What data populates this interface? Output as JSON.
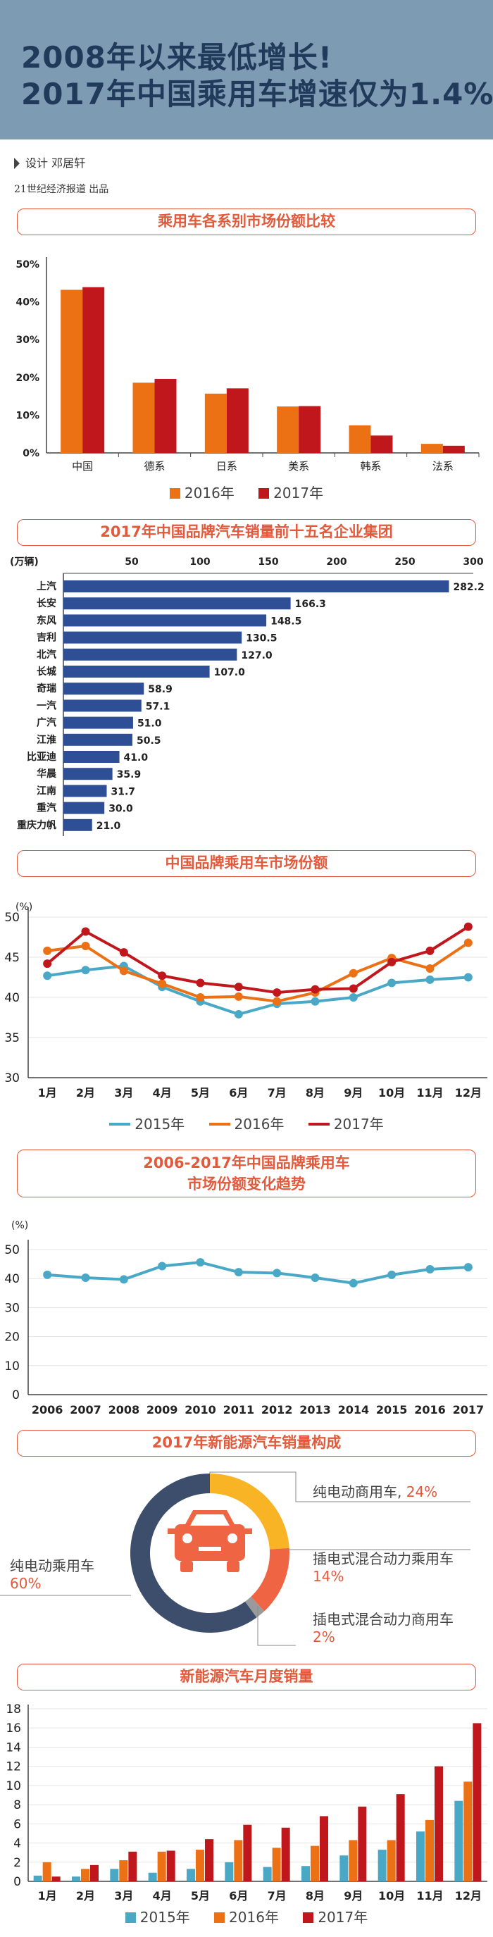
{
  "header": {
    "title_line1": "2008年以来最低增长!",
    "title_line2": "2017年中国乘用车增速仅为1.4%"
  },
  "credits": {
    "designer": "设计  邓居轩",
    "publisher": "21世纪经济报道  出品"
  },
  "sections": {
    "s1": "乘用车各系别市场份额比较",
    "s2": "2017年中国品牌汽车销量前十五名企业集团",
    "s3": "中国品牌乘用车市场份额",
    "s4_line1": "2006-2017年中国品牌乘用车",
    "s4_line2": "市场份额变化趋势",
    "s5": "2017年新能源汽车销量构成",
    "s6": "新能源汽车月度销量"
  },
  "colors": {
    "orange": "#ec7014",
    "red": "#c0171c",
    "blue": "#2e4e96",
    "teal": "#4aa8c7",
    "navy": "#3c4e6b",
    "yellow": "#f8b425",
    "coral": "#ef6543",
    "gray": "#9a9a9a",
    "accent": "#e25a3b"
  },
  "legend_labels": {
    "y2015": "2015年",
    "y2016": "2016年",
    "y2017": "2017年"
  },
  "donut": {
    "labels": [
      {
        "name": "纯电动商用车,",
        "pct": "24%"
      },
      {
        "name": "插电式混合动力乘用车",
        "pct": "14%"
      },
      {
        "name": "插电式混合动力商用车",
        "pct": "2%"
      },
      {
        "name": "纯电动乘用车",
        "pct": "60%"
      }
    ]
  },
  "chart_data": [
    {
      "id": "share_by_origin",
      "type": "bar",
      "title": "乘用车各系别市场份额比较",
      "categories": [
        "中国",
        "德系",
        "日系",
        "美系",
        "韩系",
        "法系"
      ],
      "series": [
        {
          "name": "2016年",
          "color": "#ec7014",
          "values": [
            43.2,
            18.6,
            15.7,
            12.3,
            7.3,
            2.4
          ]
        },
        {
          "name": "2017年",
          "color": "#c0171c",
          "values": [
            43.9,
            19.6,
            17.1,
            12.4,
            4.6,
            1.9
          ]
        }
      ],
      "yticks": [
        "0%",
        "10%",
        "20%",
        "30%",
        "40%",
        "50%"
      ],
      "ylim": [
        0,
        50
      ]
    },
    {
      "id": "top15_groups",
      "type": "bar",
      "orientation": "horizontal",
      "title": "2017年中国品牌汽车销量前十五名企业集团",
      "unit": "(万辆)",
      "categories": [
        "上汽",
        "长安",
        "东风",
        "吉利",
        "北汽",
        "长城",
        "奇瑞",
        "一汽",
        "广汽",
        "江淮",
        "比亚迪",
        "华晨",
        "江南",
        "重汽",
        "重庆力帆"
      ],
      "values": [
        282.2,
        166.3,
        148.5,
        130.5,
        127.0,
        107.0,
        58.9,
        57.1,
        51.0,
        50.5,
        41.0,
        35.9,
        31.7,
        30.0,
        21.0
      ],
      "value_labels": [
        "282.2",
        "166.3",
        "148.5",
        "130.5",
        "127.0",
        "107.0",
        "58.9",
        "57.1",
        "51.0",
        "50.5",
        "41.0",
        "35.9",
        "31.7",
        "30.0",
        "21.0"
      ],
      "xticks": [
        "50",
        "100",
        "150",
        "200",
        "250",
        "300"
      ],
      "xlim": [
        0,
        300
      ]
    },
    {
      "id": "monthly_share",
      "type": "line",
      "title": "中国品牌乘用车市场份额",
      "ylabel": "(%)",
      "categories": [
        "1月",
        "2月",
        "3月",
        "4月",
        "5月",
        "6月",
        "7月",
        "8月",
        "9月",
        "10月",
        "11月",
        "12月"
      ],
      "series": [
        {
          "name": "2015年",
          "color": "#4aa8c7",
          "values": [
            42.7,
            43.4,
            43.9,
            41.3,
            39.5,
            37.9,
            39.2,
            39.5,
            40.0,
            41.8,
            42.2,
            42.5
          ]
        },
        {
          "name": "2016年",
          "color": "#ec7014",
          "values": [
            45.8,
            46.4,
            43.3,
            41.7,
            40.0,
            40.1,
            39.5,
            40.6,
            43.0,
            44.9,
            43.6,
            46.8
          ]
        },
        {
          "name": "2017年",
          "color": "#c0171c",
          "values": [
            44.2,
            48.2,
            45.6,
            42.7,
            41.8,
            41.3,
            40.6,
            41.0,
            41.1,
            44.4,
            45.8,
            48.8
          ]
        }
      ],
      "yticks": [
        "30",
        "35",
        "40",
        "45",
        "50"
      ],
      "ylim": [
        30,
        50
      ]
    },
    {
      "id": "yearly_share",
      "type": "line",
      "title": "2006-2017年中国品牌乘用车市场份额变化趋势",
      "ylabel": "(%)",
      "categories": [
        "2006",
        "2007",
        "2008",
        "2009",
        "2010",
        "2011",
        "2012",
        "2013",
        "2014",
        "2015",
        "2016",
        "2017"
      ],
      "series": [
        {
          "name": "中国品牌",
          "color": "#4aa8c7",
          "values": [
            41.3,
            40.3,
            39.7,
            44.3,
            45.6,
            42.2,
            41.9,
            40.3,
            38.4,
            41.3,
            43.2,
            43.9
          ]
        }
      ],
      "yticks": [
        "0",
        "10",
        "20",
        "30",
        "40",
        "50"
      ],
      "ylim": [
        0,
        50
      ]
    },
    {
      "id": "nev_composition",
      "type": "pie",
      "title": "2017年新能源汽车销量构成",
      "categories": [
        "纯电动商用车",
        "插电式混合动力乘用车",
        "插电式混合动力商用车",
        "纯电动乘用车"
      ],
      "values": [
        24,
        14,
        2,
        60
      ],
      "colors": [
        "#f8b425",
        "#ef6543",
        "#9a9a9a",
        "#3c4e6b"
      ]
    },
    {
      "id": "nev_monthly",
      "type": "bar",
      "title": "新能源汽车月度销量",
      "categories": [
        "1月",
        "2月",
        "3月",
        "4月",
        "5月",
        "6月",
        "7月",
        "8月",
        "9月",
        "10月",
        "11月",
        "12月"
      ],
      "series": [
        {
          "name": "2015年",
          "color": "#4aa8c7",
          "values": [
            0.6,
            0.5,
            1.3,
            0.9,
            1.3,
            2.0,
            1.5,
            1.6,
            2.7,
            3.3,
            5.2,
            8.4
          ]
        },
        {
          "name": "2016年",
          "color": "#ec7014",
          "values": [
            2.0,
            1.3,
            2.2,
            3.1,
            3.3,
            4.3,
            3.5,
            3.7,
            4.3,
            4.3,
            6.4,
            10.4
          ]
        },
        {
          "name": "2017年",
          "color": "#c0171c",
          "values": [
            0.5,
            1.7,
            3.1,
            3.2,
            4.4,
            5.9,
            5.6,
            6.8,
            7.8,
            9.1,
            12.0,
            16.5
          ]
        }
      ],
      "yticks": [
        "0",
        "2",
        "4",
        "6",
        "8",
        "10",
        "12",
        "14",
        "16",
        "18"
      ],
      "ylim": [
        0,
        18
      ]
    }
  ]
}
